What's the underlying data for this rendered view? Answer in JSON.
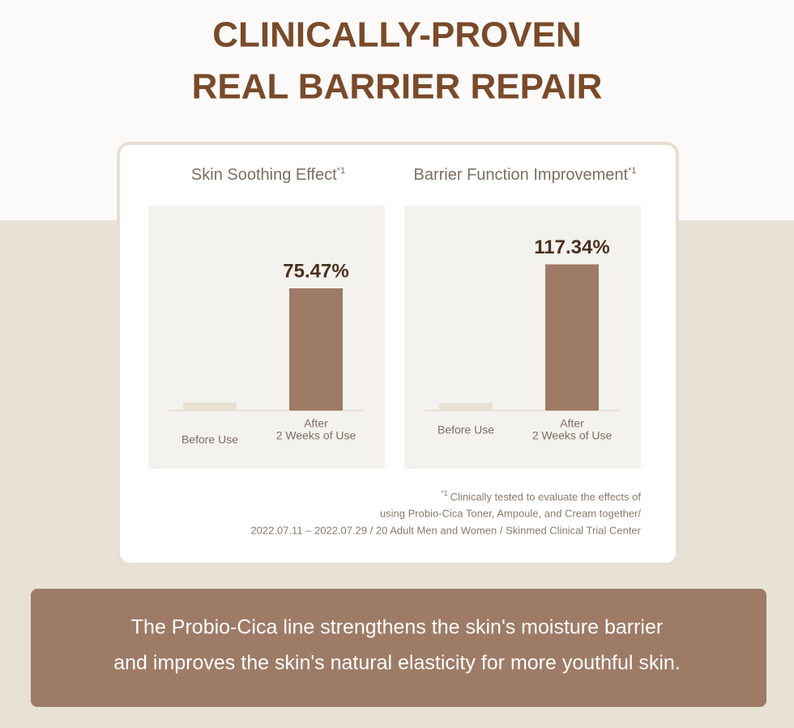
{
  "header": {
    "title_lines": [
      "CLINICALLY-PROVEN",
      "REAL BARRIER REPAIR"
    ]
  },
  "chart_data": [
    {
      "type": "bar",
      "title": "Skin Soothing Effect",
      "title_note": "*1",
      "categories": [
        [
          "Before Use"
        ],
        [
          "After",
          "2 Weeks of Use"
        ]
      ],
      "values": [
        5,
        75.47
      ],
      "value_labels": [
        null,
        "75.47%"
      ],
      "colors": [
        "#e8e1d3",
        "#9e7b66"
      ],
      "ylim": [
        0,
        100
      ]
    },
    {
      "type": "bar",
      "title": "Barrier Function Improvement",
      "title_note": "*1",
      "categories": [
        [
          "Before Use"
        ],
        [
          "After",
          "2 Weeks of Use"
        ]
      ],
      "values": [
        6,
        117.34
      ],
      "value_labels": [
        null,
        "117.34%"
      ],
      "colors": [
        "#e8e1d3",
        "#9e7b66"
      ],
      "ylim": [
        0,
        130
      ]
    }
  ],
  "footnote": {
    "marker": "*1",
    "lines": [
      "Clinically tested to evaluate the effects of",
      "using Probio-Cica Toner, Ampoule, and Cream together/",
      "2022.07.11 – 2022.07.29 / 20 Adult Men and Women / Skinmed Clinical Trial Center"
    ]
  },
  "banner": {
    "lines": [
      "The Probio-Cica line strengthens the skin's moisture barrier",
      "and improves the skin's natural elasticity for more youthful skin."
    ]
  }
}
